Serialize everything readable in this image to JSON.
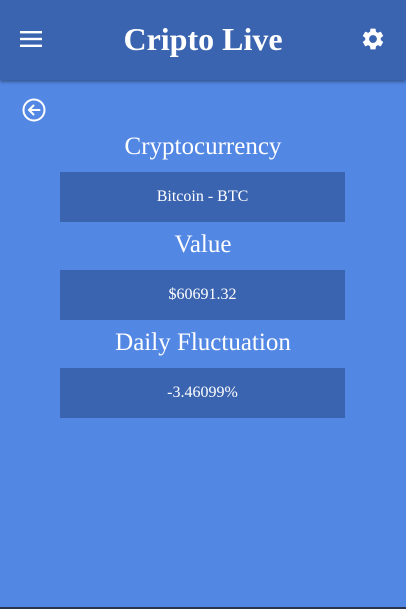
{
  "app_bar": {
    "title": "Cripto Live",
    "menu_icon": "hamburger-menu-icon",
    "settings_icon": "gear-icon"
  },
  "nav": {
    "back_icon": "back-arrow-circle-icon"
  },
  "details": {
    "cryptocurrency_label": "Cryptocurrency",
    "cryptocurrency_value": "Bitcoin - BTC",
    "value_label": "Value",
    "value_value": "$60691.32",
    "fluctuation_label": "Daily Fluctuation",
    "fluctuation_value": "-3.46099%"
  },
  "colors": {
    "background": "#5287e3",
    "app_bar": "#3b64b0",
    "value_box": "#3b64b0",
    "text": "#ffffff"
  }
}
